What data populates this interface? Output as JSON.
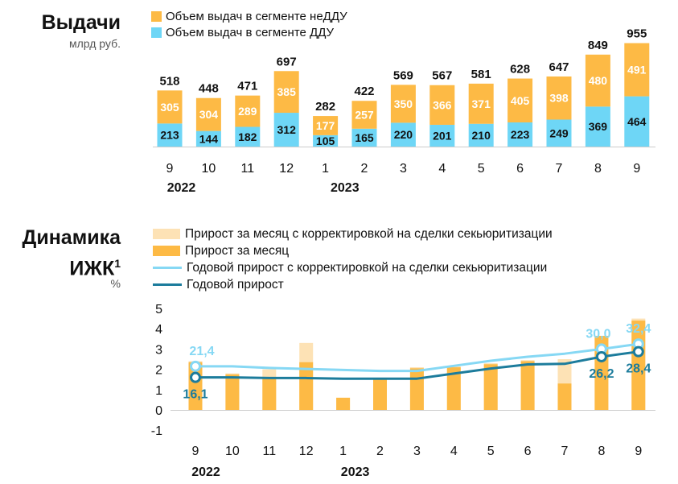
{
  "colors": {
    "orange": "#FDBA45",
    "blue": "#6ED6F6",
    "light_orange": "#FDE2B5",
    "light_blue": "#86D8F4",
    "dark_blue": "#1C7C9C",
    "axis": "#CCCCCC"
  },
  "chart_data": [
    {
      "type": "bar",
      "stacked": true,
      "title": "Выдачи",
      "ylabel": "млрд руб.",
      "categories": [
        "9",
        "10",
        "11",
        "12",
        "1",
        "2",
        "3",
        "4",
        "5",
        "6",
        "7",
        "8",
        "9"
      ],
      "year_labels": [
        "2022",
        "2023"
      ],
      "series": [
        {
          "name": "Объем выдач в сегменте ДДУ",
          "values": [
            213,
            144,
            182,
            312,
            105,
            165,
            220,
            201,
            210,
            223,
            249,
            369,
            464
          ]
        },
        {
          "name": "Объем выдач в сегменте неДДУ",
          "values": [
            305,
            304,
            289,
            385,
            177,
            257,
            350,
            366,
            371,
            405,
            398,
            480,
            491
          ]
        }
      ],
      "totals": [
        518,
        448,
        471,
        697,
        282,
        422,
        569,
        567,
        581,
        628,
        647,
        849,
        955
      ],
      "legend": [
        "Объем выдач в сегменте неДДУ",
        "Объем выдач в сегменте ДДУ"
      ]
    },
    {
      "type": "bar+line",
      "title_line1": "Динамика",
      "title_line2": "ИЖК",
      "title_sup": "1",
      "ylabel": "%",
      "categories": [
        "9",
        "10",
        "11",
        "12",
        "1",
        "2",
        "3",
        "4",
        "5",
        "6",
        "7",
        "8",
        "9"
      ],
      "year_labels": [
        "2022",
        "2023"
      ],
      "ylim": [
        -1,
        5
      ],
      "yticks": [
        "5",
        "4",
        "3",
        "2",
        "1",
        "0",
        "-1"
      ],
      "legend": [
        "Прирост за месяц с корректировкой на сделки секьюритизации",
        "Прирост за месяц",
        "Годовой прирост с корректировкой на сделки секьюритизации",
        "Годовой прирост"
      ],
      "series": [
        {
          "name": "Прирост за месяц с корректировкой на сделки секьюритизации",
          "kind": "bar",
          "values": [
            2.4,
            1.8,
            2.0,
            3.3,
            0.6,
            1.5,
            2.1,
            2.15,
            2.3,
            2.45,
            2.5,
            3.65,
            4.5
          ]
        },
        {
          "name": "Прирост за месяц",
          "kind": "bar",
          "values": [
            2.35,
            1.75,
            1.55,
            2.35,
            0.6,
            1.5,
            2.05,
            2.1,
            2.25,
            2.4,
            1.3,
            3.65,
            4.4
          ]
        },
        {
          "name": "Годовой прирост с корректировкой на сделки секьюритизации",
          "kind": "line",
          "values": [
            2.15,
            2.15,
            2.07,
            2.02,
            1.97,
            1.92,
            1.92,
            2.17,
            2.42,
            2.62,
            2.77,
            3.0,
            3.25
          ]
        },
        {
          "name": "Годовой прирост",
          "kind": "line",
          "values": [
            1.6,
            1.6,
            1.57,
            1.57,
            1.54,
            1.54,
            1.54,
            1.79,
            2.04,
            2.24,
            2.27,
            2.62,
            2.87
          ]
        }
      ],
      "annotations": [
        {
          "series": "Годовой прирост с корректировкой на сделки секьюритизации",
          "index": 0,
          "text": "21,4"
        },
        {
          "series": "Годовой прирост",
          "index": 0,
          "text": "16,1"
        },
        {
          "series": "Годовой прирост с корректировкой на сделки секьюритизации",
          "index": 11,
          "text": "30,0"
        },
        {
          "series": "Годовой прирост",
          "index": 11,
          "text": "26,2"
        },
        {
          "series": "Годовой прирост с корректировкой на сделки секьюритизации",
          "index": 12,
          "text": "32,4"
        },
        {
          "series": "Годовой прирост",
          "index": 12,
          "text": "28,4"
        }
      ]
    }
  ]
}
